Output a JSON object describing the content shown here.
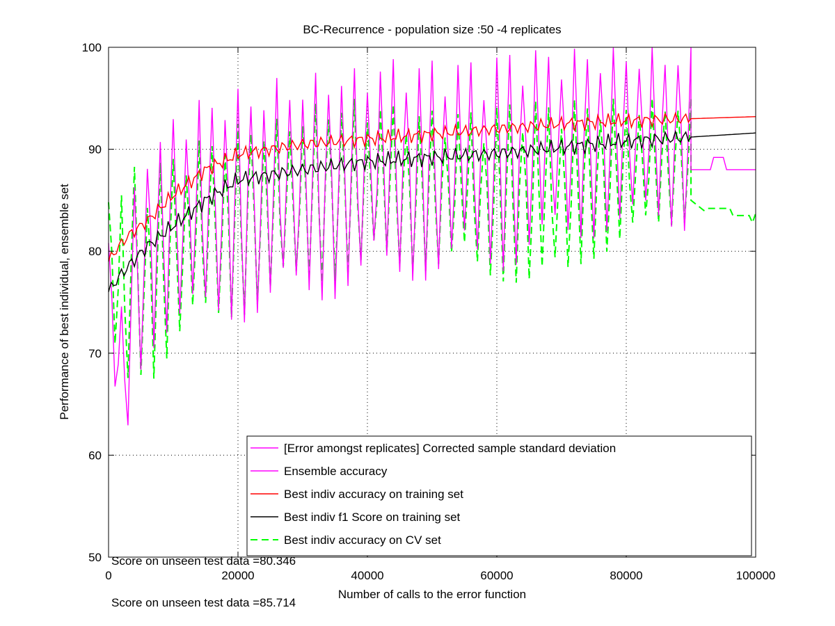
{
  "chart_data": {
    "type": "line",
    "title": "BC-Recurrence - population size :50 -4 replicates",
    "xlabel": "Number of calls to the error function",
    "ylabel": "Performance of best individual, ensemble set",
    "xlim": [
      0,
      100000
    ],
    "ylim": [
      50,
      100
    ],
    "xticks": [
      0,
      20000,
      40000,
      60000,
      80000,
      100000
    ],
    "yticks": [
      50,
      60,
      70,
      80,
      90,
      100
    ],
    "grid": true,
    "legend_placement": "bottom-right",
    "legend": [
      "[Error amongst replicates] Corrected sample standard deviation",
      "Ensemble accuracy",
      "Best indiv accuracy on training set",
      "Best indiv f1 Score on training set",
      "Best indiv accuracy on CV set"
    ],
    "annotations": [
      "Score on unseen test data =80.346",
      "Score on unseen test data =85.714"
    ],
    "colors": {
      "std": "#ff00ff",
      "ensemble": "#ff00ff",
      "train_acc": "#ff0000",
      "f1": "#000000",
      "cv": "#00ff00"
    },
    "series": [
      {
        "name": "Ensemble accuracy",
        "color": "#ff00ff",
        "oscillating": true,
        "x": [
          0,
          2000,
          4000,
          6000,
          8000,
          10000,
          14000,
          18000,
          22000,
          26000,
          30000,
          34000,
          38000,
          42000,
          46000,
          50000,
          54000,
          58000,
          62000,
          66000,
          70000,
          74000,
          78000,
          82000,
          86000,
          90000
        ],
        "upper": [
          83,
          75,
          87,
          92,
          91,
          94,
          95,
          96,
          96,
          97,
          97,
          98,
          98,
          99,
          99,
          99,
          99,
          99,
          100,
          100,
          100,
          100,
          100,
          100,
          100,
          100
        ],
        "lower": [
          72,
          57,
          66,
          70,
          71,
          72,
          72,
          73,
          73,
          74,
          75,
          75,
          76,
          77,
          77,
          77,
          78,
          78,
          78,
          80,
          80,
          81,
          82,
          82,
          82,
          82
        ],
        "tail_x": [
          90000,
          93000,
          93500,
          95000,
          95500,
          100000
        ],
        "tail_y": [
          88,
          88,
          89.2,
          89.2,
          88,
          88
        ]
      },
      {
        "name": "Best indiv accuracy on training set",
        "color": "#ff0000",
        "x": [
          0,
          1000,
          3000,
          6000,
          10000,
          15000,
          20000,
          30000,
          40000,
          50000,
          60000,
          70000,
          80000,
          90000,
          95000,
          100000
        ],
        "y": [
          79,
          80,
          81.5,
          83,
          85.5,
          88,
          89.5,
          90.5,
          91,
          91.5,
          92,
          92.5,
          92.8,
          93,
          93.1,
          93.2
        ],
        "noise": 0.8
      },
      {
        "name": "Best indiv f1 Score on training set",
        "color": "#000000",
        "x": [
          0,
          1000,
          3000,
          6000,
          10000,
          15000,
          20000,
          30000,
          40000,
          50000,
          60000,
          70000,
          80000,
          90000,
          95000,
          100000
        ],
        "y": [
          76,
          77,
          78.5,
          80.5,
          82.5,
          85,
          87,
          88,
          88.8,
          89.2,
          89.6,
          90.2,
          90.8,
          91.2,
          91.4,
          91.6
        ],
        "noise": 0.9
      },
      {
        "name": "Best indiv accuracy on CV set",
        "color": "#00ff00",
        "dashed": true,
        "oscillating": true,
        "x": [
          0,
          2000,
          4000,
          6000,
          8000,
          10000,
          14000,
          18000,
          22000,
          26000,
          30000,
          34000,
          38000,
          42000,
          46000,
          50000,
          54000,
          58000,
          62000,
          66000,
          70000,
          74000,
          78000,
          82000,
          86000,
          90000
        ],
        "upper": [
          88,
          86,
          89,
          88,
          89,
          90,
          91,
          92,
          93,
          93,
          94,
          95,
          95,
          95,
          94,
          94,
          94,
          94,
          95,
          95,
          95,
          95,
          95,
          95,
          95,
          95
        ],
        "lower": [
          72,
          64,
          68,
          67,
          68,
          70,
          72,
          73,
          74,
          75,
          76,
          77,
          77,
          78,
          78,
          78,
          78,
          77,
          77,
          76,
          76,
          79,
          80,
          81,
          82,
          83
        ],
        "tail_x": [
          90000,
          92000,
          92500,
          96000,
          96500,
          99000,
          99500,
          100000
        ],
        "tail_y": [
          85,
          84,
          84.2,
          84.2,
          83.5,
          83.5,
          82.8,
          83.7
        ]
      }
    ]
  }
}
